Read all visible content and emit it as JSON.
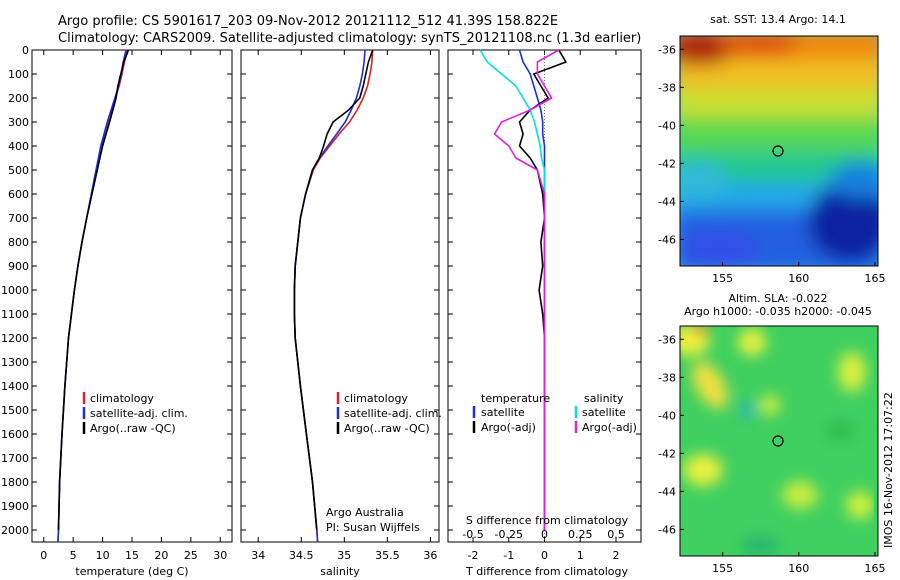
{
  "figure": {
    "title_line1": "Argo profile: CS 5901617_203 09-Nov-2012 20121112_512 41.39S 158.822E",
    "title_line2": "Climatology: CARS2009. Satellite-adjusted climatology: synTS_20121108.nc (1.3d earlier)",
    "credit_line1": "Argo Australia",
    "credit_line2": "PI: Susan Wijffels",
    "side_stamp": "IMOS 16-Nov-2012 17:07:22"
  },
  "colors": {
    "climatology": "#e02020",
    "satellite_adj": "#1a2ee0",
    "argo": "#000000",
    "satellite_s": "#00e0e0",
    "argo_s": "#e020e0"
  },
  "chart_data": [
    {
      "type": "line",
      "name": "temperature-profile",
      "xlabel": "temperature (deg C)",
      "ylabel": "",
      "xlim": [
        -2,
        32
      ],
      "ylim": [
        2050,
        0
      ],
      "xticks": [
        0,
        5,
        10,
        15,
        20,
        25,
        30
      ],
      "yticks": [
        0,
        100,
        200,
        300,
        400,
        500,
        600,
        700,
        800,
        900,
        1000,
        1100,
        1200,
        1300,
        1400,
        1500,
        1600,
        1700,
        1800,
        1900,
        2000
      ],
      "legend": [
        "climatology",
        "satellite-adj. clim.",
        "Argo(..raw -QC)"
      ],
      "depth": [
        0,
        50,
        100,
        150,
        200,
        300,
        400,
        500,
        600,
        700,
        800,
        900,
        1000,
        1200,
        1400,
        1600,
        1800,
        2000,
        2050
      ],
      "series": [
        {
          "name": "climatology",
          "values": [
            14.2,
            13.7,
            13.3,
            12.8,
            12.2,
            10.9,
            9.8,
            8.9,
            8.1,
            7.3,
            6.5,
            5.8,
            5.2,
            4.2,
            3.6,
            3.1,
            2.7,
            2.5,
            2.4
          ]
        },
        {
          "name": "satellite-adj. clim.",
          "values": [
            14.0,
            13.5,
            13.2,
            12.7,
            12.1,
            10.8,
            9.7,
            8.9,
            8.1,
            7.3,
            6.5,
            5.8,
            5.2,
            4.2,
            3.6,
            3.1,
            2.7,
            2.5,
            2.4
          ]
        },
        {
          "name": "Argo(..raw -QC)",
          "values": [
            14.4,
            13.6,
            13.1,
            12.6,
            12.3,
            11.2,
            10.0,
            9.1,
            8.2,
            7.3,
            6.5,
            5.8,
            5.2,
            4.2,
            3.6,
            3.1,
            2.7,
            2.5,
            null
          ]
        }
      ]
    },
    {
      "type": "line",
      "name": "salinity-profile",
      "xlabel": "salinity",
      "ylabel": "",
      "xlim": [
        33.8,
        36.1
      ],
      "ylim": [
        2050,
        0
      ],
      "xticks": [
        34,
        34.5,
        35,
        35.5,
        36
      ],
      "ytick_labels": false,
      "legend": [
        "climatology",
        "satellite-adj. clim.",
        "Argo(..raw -QC)"
      ],
      "depth": [
        0,
        50,
        100,
        150,
        200,
        250,
        300,
        350,
        400,
        450,
        500,
        600,
        700,
        800,
        900,
        1000,
        1100,
        1200,
        1400,
        1600,
        1800,
        2000,
        2050
      ],
      "series": [
        {
          "name": "climatology",
          "values": [
            35.33,
            35.32,
            35.3,
            35.27,
            35.22,
            35.15,
            35.06,
            34.94,
            34.83,
            34.72,
            34.64,
            34.55,
            34.49,
            34.46,
            34.43,
            34.42,
            34.42,
            34.43,
            34.49,
            34.56,
            34.63,
            34.68,
            34.69
          ]
        },
        {
          "name": "satellite-adj. clim.",
          "values": [
            35.24,
            35.23,
            35.21,
            35.18,
            35.14,
            35.08,
            35.01,
            34.91,
            34.81,
            34.71,
            34.63,
            34.55,
            34.49,
            34.46,
            34.43,
            34.42,
            34.42,
            34.43,
            34.49,
            34.56,
            34.63,
            34.68,
            34.69
          ]
        },
        {
          "name": "Argo(..raw -QC)",
          "values": [
            35.33,
            35.28,
            35.25,
            35.22,
            35.18,
            35.05,
            34.87,
            34.8,
            34.76,
            34.71,
            34.63,
            34.55,
            34.49,
            34.46,
            34.43,
            34.42,
            34.42,
            34.43,
            34.49,
            34.56,
            34.63,
            34.68,
            null
          ]
        }
      ]
    },
    {
      "type": "line",
      "name": "difference-profile",
      "xlabel": "T difference from climatology",
      "x2label": "S difference from climatology",
      "xlim": [
        -2.7,
        2.7
      ],
      "ylim": [
        2050,
        0
      ],
      "xticks": [
        -2,
        -1,
        0,
        1,
        2
      ],
      "x2ticks": [
        -0.5,
        -0.25,
        0,
        0.25,
        0.5
      ],
      "ytick_labels": false,
      "legend_temperature_title": "temperature",
      "legend_salinity_title": "salinity",
      "legend": [
        "satellite",
        "Argo(-adj)",
        "satellite",
        "Argo(-adj)"
      ],
      "depth": [
        0,
        50,
        100,
        150,
        200,
        250,
        300,
        350,
        400,
        450,
        500,
        600,
        700,
        800,
        900,
        1000,
        1100,
        1200,
        1400,
        1600,
        1800,
        2000
      ],
      "series": [
        {
          "name": "T satellite",
          "values": [
            -0.7,
            -0.6,
            -0.4,
            -0.3,
            -0.2,
            -0.1,
            -0.05,
            -0.05,
            0,
            0,
            0,
            0,
            0,
            0,
            0,
            0,
            0,
            0,
            0,
            0,
            0,
            0
          ]
        },
        {
          "name": "T Argo(-adj)",
          "values": [
            0.4,
            0.6,
            -0.3,
            -0.1,
            0.1,
            -0.4,
            -0.7,
            -0.6,
            -0.7,
            -0.4,
            -0.2,
            -0.05,
            0,
            -0.1,
            -0.05,
            -0.15,
            -0.05,
            0,
            0,
            0,
            0,
            0
          ]
        },
        {
          "name": "S satellite",
          "values": [
            -0.45,
            -0.4,
            -0.3,
            -0.2,
            -0.15,
            -0.1,
            -0.07,
            -0.05,
            -0.03,
            -0.02,
            0,
            0,
            0,
            0,
            0,
            0,
            0,
            0,
            0,
            0,
            0,
            0
          ]
        },
        {
          "name": "S Argo(-adj)",
          "values": [
            0.1,
            -0.05,
            -0.05,
            0,
            0.05,
            -0.1,
            -0.3,
            -0.35,
            -0.25,
            -0.2,
            -0.05,
            0,
            0,
            0,
            0,
            0,
            0,
            0,
            0,
            0,
            0,
            0
          ]
        }
      ]
    },
    {
      "type": "heatmap",
      "name": "sst-map",
      "title": "sat. SST: 13.4  Argo: 14.1",
      "xlim": [
        152.2,
        165.2
      ],
      "ylim": [
        -47.4,
        -35.3
      ],
      "xticks": [
        155,
        160,
        165
      ],
      "yticks": [
        -36,
        -38,
        -40,
        -42,
        -44,
        -46
      ],
      "marker": {
        "lon": 158.822,
        "lat": -41.39
      }
    },
    {
      "type": "heatmap",
      "name": "sla-map",
      "title_line1": "Altim. SLA: -0.022",
      "title_line2": "Argo h1000: -0.035  h2000: -0.045",
      "xlim": [
        152.2,
        165.2
      ],
      "ylim": [
        -47.4,
        -35.3
      ],
      "xticks": [
        155,
        160,
        165
      ],
      "yticks": [
        -36,
        -38,
        -40,
        -42,
        -44,
        -46
      ],
      "marker": {
        "lon": 158.822,
        "lat": -41.39
      }
    }
  ]
}
